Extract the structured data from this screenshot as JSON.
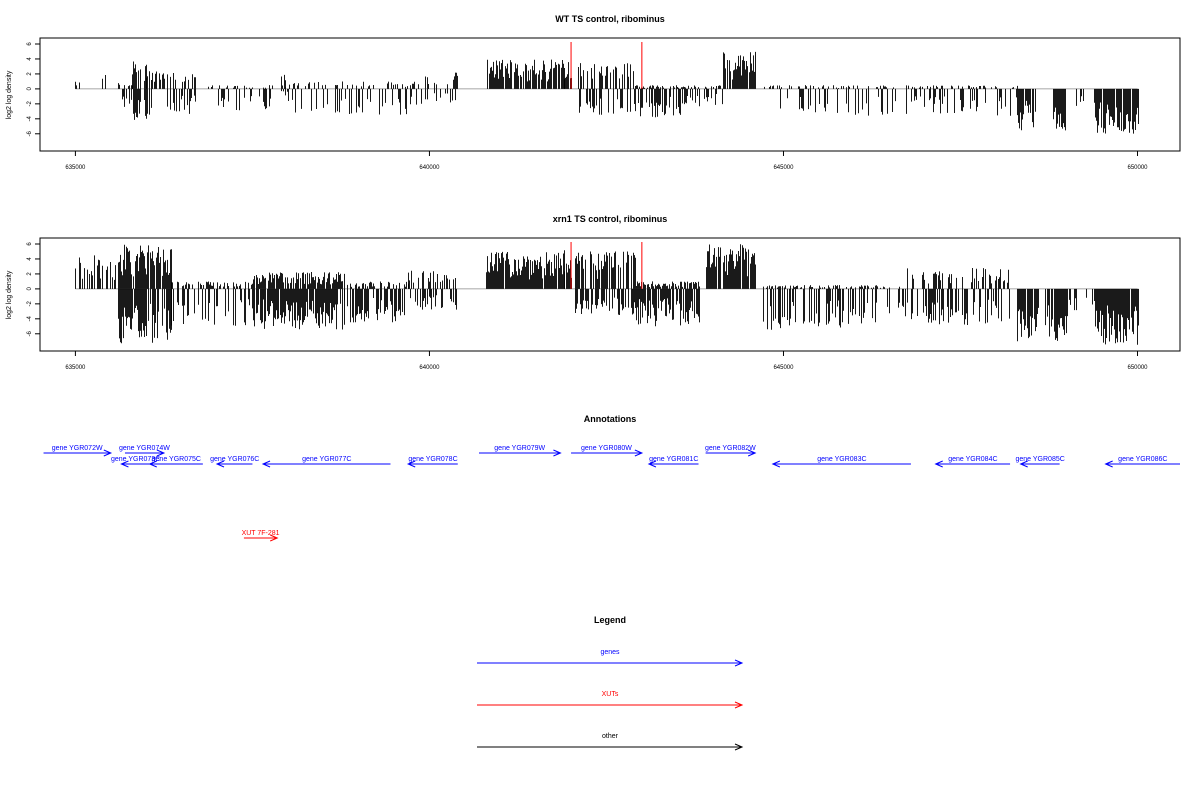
{
  "chart_data": [
    {
      "type": "bar",
      "title": "WT TS control, ribominus",
      "ylabel": "log2 log density",
      "xlim": [
        634500,
        650600
      ],
      "ylim": [
        -8.3,
        6.8
      ],
      "x_ticks": [
        635000,
        640000,
        645000,
        650000
      ],
      "y_ticks": [
        6,
        4,
        2,
        0,
        -2,
        -4,
        -6
      ],
      "marker_positions": [
        642000,
        643000
      ],
      "marker_color": "#ff0000",
      "bar_color": "#000000",
      "regions": [
        {
          "x0": 635000,
          "x1": 635100,
          "pos": 1.0,
          "neg": 0.0,
          "d": 0.5
        },
        {
          "x0": 635350,
          "x1": 635420,
          "pos": 2.3,
          "neg": 0.0,
          "d": 0.5
        },
        {
          "x0": 635600,
          "x1": 635800,
          "pos": 0.8,
          "neg": 2.5,
          "d": 0.5
        },
        {
          "x0": 635800,
          "x1": 636000,
          "pos": 4.0,
          "neg": 4.3,
          "d": 0.7
        },
        {
          "x0": 636000,
          "x1": 636700,
          "pos": 2.5,
          "neg": 3.5,
          "d": 0.4
        },
        {
          "x0": 636700,
          "x1": 638000,
          "pos": 0.5,
          "neg": 3.0,
          "d": 0.25
        },
        {
          "x0": 637900,
          "x1": 638000,
          "pos": 2.3,
          "neg": 0.5,
          "d": 0.5
        },
        {
          "x0": 638000,
          "x1": 639900,
          "pos": 1.0,
          "neg": 3.5,
          "d": 0.25
        },
        {
          "x0": 639900,
          "x1": 640400,
          "pos": 2.3,
          "neg": 2.0,
          "d": 0.3
        },
        {
          "x0": 640800,
          "x1": 641900,
          "pos": 4.0,
          "neg": 0.0,
          "d": 0.85
        },
        {
          "x0": 641900,
          "x1": 642000,
          "pos": 4.4,
          "neg": 0.0,
          "d": 0.8
        },
        {
          "x0": 642050,
          "x1": 642900,
          "pos": 3.5,
          "neg": 3.5,
          "d": 0.45
        },
        {
          "x0": 642900,
          "x1": 643600,
          "pos": 0.5,
          "neg": 4.0,
          "d": 0.65
        },
        {
          "x0": 643600,
          "x1": 644150,
          "pos": 0.5,
          "neg": 2.5,
          "d": 0.3
        },
        {
          "x0": 644150,
          "x1": 644600,
          "pos": 5.0,
          "neg": 0.0,
          "d": 0.9
        },
        {
          "x0": 644700,
          "x1": 648300,
          "pos": 0.5,
          "neg": 3.6,
          "d": 0.28
        },
        {
          "x0": 648300,
          "x1": 648550,
          "pos": 0.0,
          "neg": 6.0,
          "d": 0.9
        },
        {
          "x0": 648800,
          "x1": 648980,
          "pos": 0.0,
          "neg": 5.8,
          "d": 0.9
        },
        {
          "x0": 649000,
          "x1": 649400,
          "pos": 0.0,
          "neg": 2.5,
          "d": 0.3
        },
        {
          "x0": 649400,
          "x1": 650000,
          "pos": 0.0,
          "neg": 6.0,
          "d": 0.9
        }
      ]
    },
    {
      "type": "bar",
      "title": "xrn1 TS control, ribominus",
      "ylabel": "log2 log density",
      "xlim": [
        634500,
        650600
      ],
      "ylim": [
        -8.3,
        6.8
      ],
      "x_ticks": [
        635000,
        640000,
        645000,
        650000
      ],
      "y_ticks": [
        6,
        4,
        2,
        0,
        -2,
        -4,
        -6
      ],
      "marker_positions": [
        642000,
        643000
      ],
      "marker_color": "#ff0000",
      "bar_color": "#000000",
      "regions": [
        {
          "x0": 635000,
          "x1": 635600,
          "pos": 4.5,
          "neg": 0.0,
          "d": 0.45
        },
        {
          "x0": 635600,
          "x1": 636350,
          "pos": 6.0,
          "neg": 7.3,
          "d": 0.85
        },
        {
          "x0": 636350,
          "x1": 637500,
          "pos": 1.0,
          "neg": 5.0,
          "d": 0.4
        },
        {
          "x0": 637500,
          "x1": 638800,
          "pos": 2.3,
          "neg": 5.5,
          "d": 0.85
        },
        {
          "x0": 638800,
          "x1": 639700,
          "pos": 1.0,
          "neg": 4.5,
          "d": 0.55
        },
        {
          "x0": 639700,
          "x1": 640400,
          "pos": 2.5,
          "neg": 3.0,
          "d": 0.45
        },
        {
          "x0": 640800,
          "x1": 641900,
          "pos": 5.0,
          "neg": 0.0,
          "d": 0.95
        },
        {
          "x0": 641900,
          "x1": 642000,
          "pos": 5.2,
          "neg": 0.0,
          "d": 0.9
        },
        {
          "x0": 642050,
          "x1": 642900,
          "pos": 5.0,
          "neg": 3.5,
          "d": 0.6
        },
        {
          "x0": 642900,
          "x1": 643800,
          "pos": 1.0,
          "neg": 5.0,
          "d": 0.75
        },
        {
          "x0": 643900,
          "x1": 644600,
          "pos": 6.0,
          "neg": 0.0,
          "d": 0.95
        },
        {
          "x0": 644700,
          "x1": 646300,
          "pos": 0.5,
          "neg": 5.5,
          "d": 0.45
        },
        {
          "x0": 646300,
          "x1": 646700,
          "pos": 0.5,
          "neg": 3.5,
          "d": 0.2
        },
        {
          "x0": 646700,
          "x1": 648200,
          "pos": 2.8,
          "neg": 5.0,
          "d": 0.45
        },
        {
          "x0": 648300,
          "x1": 648600,
          "pos": 0.0,
          "neg": 7.5,
          "d": 0.95
        },
        {
          "x0": 648700,
          "x1": 649000,
          "pos": 0.0,
          "neg": 7.0,
          "d": 0.9
        },
        {
          "x0": 649000,
          "x1": 649400,
          "pos": 0.0,
          "neg": 3.0,
          "d": 0.3
        },
        {
          "x0": 649400,
          "x1": 650000,
          "pos": 0.0,
          "neg": 7.5,
          "d": 0.95
        }
      ]
    }
  ],
  "annotations": {
    "title": "Annotations",
    "genes_color": "#0000ff",
    "xuts_color": "#ff0000",
    "genes": [
      {
        "label": "gene YGR072W",
        "x0": 634550,
        "x1": 635500,
        "dir": "+",
        "row": 0
      },
      {
        "label": "gene YGR074W",
        "x0": 635700,
        "x1": 636250,
        "dir": "+",
        "row": 0
      },
      {
        "label": "gene YGR073C",
        "x0": 635650,
        "x1": 636050,
        "dir": "-",
        "row": 1
      },
      {
        "label": "gene YGR075C",
        "x0": 636050,
        "x1": 636800,
        "dir": "-",
        "row": 1
      },
      {
        "label": "gene YGR076C",
        "x0": 637000,
        "x1": 637500,
        "dir": "-",
        "row": 1
      },
      {
        "label": "gene YGR077C",
        "x0": 637650,
        "x1": 639450,
        "dir": "-",
        "row": 1
      },
      {
        "label": "gene YGR078C",
        "x0": 639700,
        "x1": 640400,
        "dir": "-",
        "row": 1
      },
      {
        "label": "gene YGR079W",
        "x0": 640700,
        "x1": 641850,
        "dir": "+",
        "row": 0
      },
      {
        "label": "gene YGR080W",
        "x0": 642000,
        "x1": 643000,
        "dir": "+",
        "row": 0
      },
      {
        "label": "gene YGR081C",
        "x0": 643100,
        "x1": 643800,
        "dir": "-",
        "row": 1
      },
      {
        "label": "gene YGR082W",
        "x0": 643900,
        "x1": 644600,
        "dir": "+",
        "row": 0
      },
      {
        "label": "gene YGR083C",
        "x0": 644850,
        "x1": 646800,
        "dir": "-",
        "row": 1
      },
      {
        "label": "gene YGR084C",
        "x0": 647150,
        "x1": 648200,
        "dir": "-",
        "row": 1
      },
      {
        "label": "gene YGR085C",
        "x0": 648350,
        "x1": 648900,
        "dir": "-",
        "row": 1
      },
      {
        "label": "gene YGR086C",
        "x0": 649550,
        "x1": 650600,
        "dir": "-",
        "row": 1
      }
    ],
    "xuts": [
      {
        "label": "XUT 7F-281",
        "x0": 637380,
        "x1": 637850,
        "dir": "+"
      }
    ]
  },
  "legend": {
    "title": "Legend",
    "items": [
      {
        "label": "genes",
        "color": "#0000ff"
      },
      {
        "label": "XUTs",
        "color": "#ff0000"
      },
      {
        "label": "other",
        "color": "#000000"
      }
    ]
  }
}
